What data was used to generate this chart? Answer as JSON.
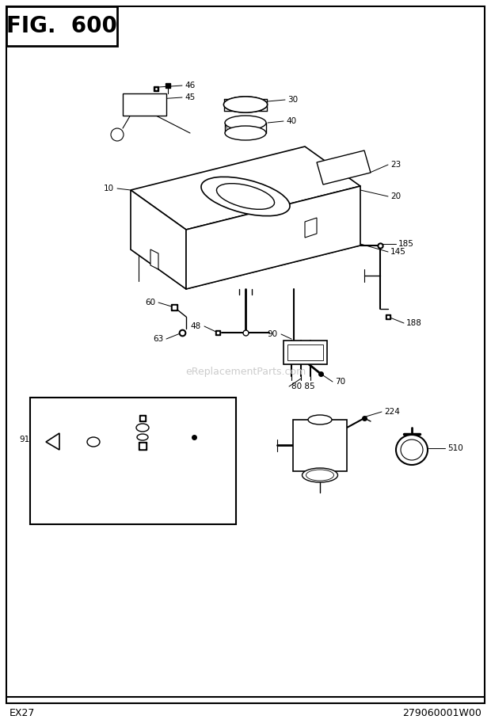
{
  "title": "FIG.  600",
  "footer_left": "EX27",
  "footer_right": "279060001W00",
  "watermark": "eReplacementParts.com",
  "bg_color": "#ffffff",
  "border_color": "#000000",
  "text_color": "#000000"
}
